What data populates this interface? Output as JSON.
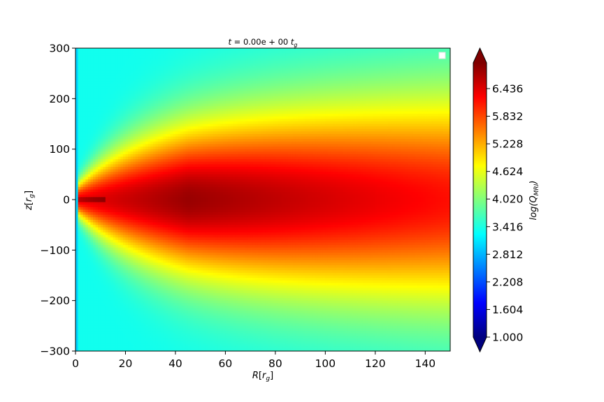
{
  "chart_data": {
    "type": "heatmap",
    "title": "t = 0.00e+00 t_g",
    "title_parts": {
      "t": "t",
      "eq": " = 0.00e + 00 ",
      "tg": "t",
      "tg_sub": "g"
    },
    "xlabel": {
      "main": "R",
      "open": "[",
      "sym": "r",
      "sub": "g",
      "close": "]"
    },
    "ylabel": {
      "main": "z",
      "open": "[",
      "sym": "r",
      "sub": "g",
      "close": "]"
    },
    "colorbar_label": {
      "main": "log(Q",
      "sub": "MRI",
      "close": ")"
    },
    "xlim": [
      0,
      150
    ],
    "ylim": [
      -300,
      300
    ],
    "x_ticks": [
      "0",
      "20",
      "40",
      "60",
      "80",
      "100",
      "120",
      "140"
    ],
    "x_tick_values": [
      0,
      20,
      40,
      60,
      80,
      100,
      120,
      140
    ],
    "y_ticks": [
      "300",
      "200",
      "100",
      "0",
      "−100",
      "−200",
      "−300"
    ],
    "y_tick_values": [
      300,
      200,
      100,
      0,
      -100,
      -200,
      -300
    ],
    "colorbar_range": [
      1.0,
      7.0
    ],
    "colorbar_ticks": [
      "1.000",
      "1.604",
      "2.208",
      "2.812",
      "3.416",
      "4.020",
      "4.624",
      "5.228",
      "5.832",
      "6.436"
    ],
    "colorbar_tick_values": [
      1.0,
      1.604,
      2.208,
      2.812,
      3.416,
      4.02,
      4.624,
      5.228,
      5.832,
      6.436
    ],
    "colormap": "jet",
    "colorbar_extend": "both",
    "legend": "upper-right (empty)",
    "grid": false
  }
}
